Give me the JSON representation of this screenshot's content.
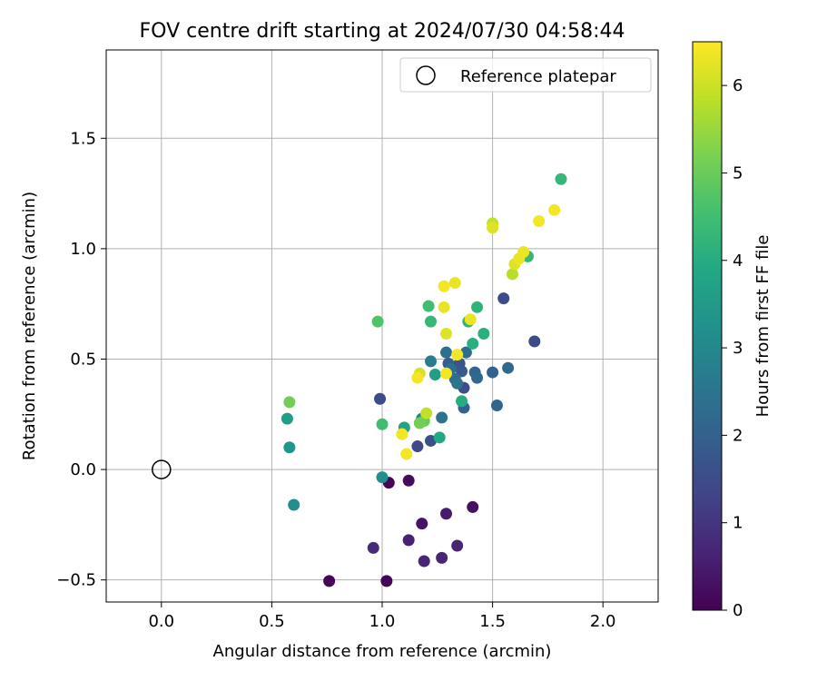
{
  "chart_data": {
    "type": "scatter",
    "title": "FOV centre drift starting at 2024/07/30 04:58:44",
    "xlabel": "Angular distance from reference (arcmin)",
    "ylabel": "Rotation from reference (arcmin)",
    "xlim": [
      -0.25,
      2.25
    ],
    "ylim": [
      -0.6,
      1.9
    ],
    "xticks": [
      0.0,
      0.5,
      1.0,
      1.5,
      2.0
    ],
    "xtick_labels": [
      "0.0",
      "0.5",
      "1.0",
      "1.5",
      "2.0"
    ],
    "yticks": [
      -0.5,
      0.0,
      0.5,
      1.0,
      1.5
    ],
    "ytick_labels": [
      "−0.5",
      "0.0",
      "0.5",
      "1.0",
      "1.5"
    ],
    "grid": true,
    "legend": {
      "position": "top-right",
      "entries": [
        {
          "label": "Reference platepar",
          "marker": "open-circle"
        }
      ]
    },
    "reference_point": {
      "x": 0.0,
      "y": 0.0
    },
    "colorbar": {
      "label": "Hours from first FF file",
      "colormap": "viridis",
      "range": [
        0,
        6.5
      ],
      "ticks": [
        0,
        1,
        2,
        3,
        4,
        5,
        6
      ],
      "tick_labels": [
        "0",
        "1",
        "2",
        "3",
        "4",
        "5",
        "6"
      ]
    },
    "points": [
      {
        "x": 0.76,
        "y": -0.505,
        "h": 0.1
      },
      {
        "x": 1.02,
        "y": -0.505,
        "h": 0.05
      },
      {
        "x": 1.03,
        "y": -0.06,
        "h": 0.1
      },
      {
        "x": 1.12,
        "y": -0.05,
        "h": 0.2
      },
      {
        "x": 1.41,
        "y": -0.17,
        "h": 0.3
      },
      {
        "x": 1.18,
        "y": -0.245,
        "h": 0.35
      },
      {
        "x": 1.29,
        "y": -0.2,
        "h": 0.5
      },
      {
        "x": 1.12,
        "y": -0.32,
        "h": 0.6
      },
      {
        "x": 0.96,
        "y": -0.355,
        "h": 0.8
      },
      {
        "x": 1.19,
        "y": -0.415,
        "h": 0.7
      },
      {
        "x": 1.27,
        "y": -0.4,
        "h": 0.7
      },
      {
        "x": 1.34,
        "y": -0.345,
        "h": 0.7
      },
      {
        "x": 1.16,
        "y": 0.105,
        "h": 1.4
      },
      {
        "x": 1.22,
        "y": 0.13,
        "h": 1.6
      },
      {
        "x": 0.99,
        "y": 0.32,
        "h": 1.5
      },
      {
        "x": 1.55,
        "y": 0.775,
        "h": 1.5
      },
      {
        "x": 1.69,
        "y": 0.58,
        "h": 1.5
      },
      {
        "x": 1.37,
        "y": 0.37,
        "h": 1.6
      },
      {
        "x": 1.35,
        "y": 0.48,
        "h": 1.7
      },
      {
        "x": 1.36,
        "y": 0.445,
        "h": 1.8
      },
      {
        "x": 1.3,
        "y": 0.48,
        "h": 1.9
      },
      {
        "x": 1.37,
        "y": 0.28,
        "h": 2.0
      },
      {
        "x": 1.5,
        "y": 0.44,
        "h": 2.0
      },
      {
        "x": 1.42,
        "y": 0.44,
        "h": 2.1
      },
      {
        "x": 1.52,
        "y": 0.29,
        "h": 2.1
      },
      {
        "x": 1.57,
        "y": 0.46,
        "h": 2.2
      },
      {
        "x": 1.43,
        "y": 0.415,
        "h": 2.2
      },
      {
        "x": 1.33,
        "y": 0.41,
        "h": 2.3
      },
      {
        "x": 1.38,
        "y": 0.53,
        "h": 2.3
      },
      {
        "x": 1.29,
        "y": 0.53,
        "h": 2.4
      },
      {
        "x": 1.31,
        "y": 0.455,
        "h": 2.4
      },
      {
        "x": 1.27,
        "y": 0.235,
        "h": 2.5
      },
      {
        "x": 1.34,
        "y": 0.39,
        "h": 2.5
      },
      {
        "x": 1.22,
        "y": 0.49,
        "h": 2.7
      },
      {
        "x": 1.18,
        "y": 0.23,
        "h": 2.9
      },
      {
        "x": 0.6,
        "y": -0.16,
        "h": 3.2
      },
      {
        "x": 1.0,
        "y": -0.035,
        "h": 3.2
      },
      {
        "x": 0.58,
        "y": 0.1,
        "h": 3.4
      },
      {
        "x": 0.57,
        "y": 0.23,
        "h": 3.6
      },
      {
        "x": 1.24,
        "y": 0.43,
        "h": 3.6
      },
      {
        "x": 1.1,
        "y": 0.19,
        "h": 3.8
      },
      {
        "x": 1.26,
        "y": 0.145,
        "h": 3.9
      },
      {
        "x": 1.36,
        "y": 0.31,
        "h": 4.0
      },
      {
        "x": 1.41,
        "y": 0.57,
        "h": 4.1
      },
      {
        "x": 1.46,
        "y": 0.615,
        "h": 4.1
      },
      {
        "x": 1.39,
        "y": 0.67,
        "h": 4.2
      },
      {
        "x": 1.43,
        "y": 0.735,
        "h": 4.2
      },
      {
        "x": 1.22,
        "y": 0.67,
        "h": 4.3
      },
      {
        "x": 1.81,
        "y": 1.315,
        "h": 4.3
      },
      {
        "x": 1.66,
        "y": 0.965,
        "h": 4.3
      },
      {
        "x": 1.21,
        "y": 0.74,
        "h": 4.5
      },
      {
        "x": 1.0,
        "y": 0.205,
        "h": 4.5
      },
      {
        "x": 0.98,
        "y": 0.67,
        "h": 4.7
      },
      {
        "x": 1.19,
        "y": 0.22,
        "h": 5.0
      },
      {
        "x": 1.17,
        "y": 0.21,
        "h": 5.1
      },
      {
        "x": 0.58,
        "y": 0.305,
        "h": 5.1
      },
      {
        "x": 1.59,
        "y": 0.885,
        "h": 5.8
      },
      {
        "x": 1.5,
        "y": 1.115,
        "h": 5.9
      },
      {
        "x": 1.2,
        "y": 0.255,
        "h": 5.9
      },
      {
        "x": 1.17,
        "y": 0.435,
        "h": 6.1
      },
      {
        "x": 1.29,
        "y": 0.615,
        "h": 6.2
      },
      {
        "x": 1.6,
        "y": 0.93,
        "h": 6.2
      },
      {
        "x": 1.5,
        "y": 1.095,
        "h": 6.2
      },
      {
        "x": 1.62,
        "y": 0.955,
        "h": 6.3
      },
      {
        "x": 1.64,
        "y": 0.985,
        "h": 6.3
      },
      {
        "x": 1.4,
        "y": 0.68,
        "h": 6.3
      },
      {
        "x": 1.28,
        "y": 0.735,
        "h": 6.3
      },
      {
        "x": 1.33,
        "y": 0.845,
        "h": 6.3
      },
      {
        "x": 1.28,
        "y": 0.83,
        "h": 6.4
      },
      {
        "x": 1.34,
        "y": 0.52,
        "h": 6.4
      },
      {
        "x": 1.29,
        "y": 0.435,
        "h": 6.4
      },
      {
        "x": 1.16,
        "y": 0.415,
        "h": 6.4
      },
      {
        "x": 1.09,
        "y": 0.16,
        "h": 6.4
      },
      {
        "x": 1.11,
        "y": 0.07,
        "h": 6.4
      },
      {
        "x": 1.71,
        "y": 1.125,
        "h": 6.4
      },
      {
        "x": 1.78,
        "y": 1.175,
        "h": 6.4
      }
    ]
  }
}
